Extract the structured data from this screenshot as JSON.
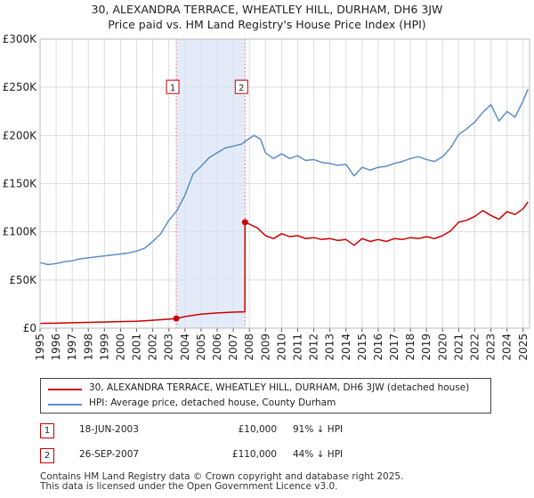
{
  "title_line1": "30, ALEXANDRA TERRACE, WHEATLEY HILL, DURHAM, DH6 3JW",
  "title_line2": "Price paid vs. HM Land Registry's House Price Index (HPI)",
  "chart_data": {
    "type": "line",
    "title": "30, ALEXANDRA TERRACE, WHEATLEY HILL, DURHAM, DH6 3JW — Price paid vs. HM Land Registry's House Price Index (HPI)",
    "xlabel": "",
    "ylabel": "",
    "xlim": [
      1995,
      2025.4
    ],
    "ylim": [
      0,
      300000
    ],
    "y_ticks": [
      {
        "value": 0,
        "label": "£0"
      },
      {
        "value": 50000,
        "label": "£50K"
      },
      {
        "value": 100000,
        "label": "£100K"
      },
      {
        "value": 150000,
        "label": "£150K"
      },
      {
        "value": 200000,
        "label": "£200K"
      },
      {
        "value": 250000,
        "label": "£250K"
      },
      {
        "value": 300000,
        "label": "£300K"
      }
    ],
    "x_ticks": [
      "1995",
      "1996",
      "1997",
      "1998",
      "1999",
      "2000",
      "2001",
      "2002",
      "2003",
      "2004",
      "2005",
      "2006",
      "2007",
      "2008",
      "2009",
      "2010",
      "2011",
      "2012",
      "2013",
      "2014",
      "2015",
      "2016",
      "2017",
      "2018",
      "2019",
      "2020",
      "2021",
      "2022",
      "2023",
      "2024",
      "2025"
    ],
    "shaded_span": [
      2003.46,
      2007.73
    ],
    "series": [
      {
        "name": "30, ALEXANDRA TERRACE, WHEATLEY HILL, DURHAM, DH6 3JW (detached house)",
        "color": "#cc0000",
        "points": [
          [
            1995.0,
            5000
          ],
          [
            1996.0,
            5200
          ],
          [
            1997.0,
            5600
          ],
          [
            1998.0,
            6000
          ],
          [
            1999.0,
            6400
          ],
          [
            2000.0,
            6800
          ],
          [
            2001.0,
            7200
          ],
          [
            2002.0,
            8200
          ],
          [
            2003.0,
            9300
          ],
          [
            2003.46,
            10000
          ],
          [
            2004.0,
            12000
          ],
          [
            2005.0,
            14500
          ],
          [
            2006.0,
            15800
          ],
          [
            2007.0,
            16600
          ],
          [
            2007.72,
            17000
          ],
          [
            2007.73,
            110000
          ],
          [
            2008.0,
            108000
          ],
          [
            2008.5,
            104000
          ],
          [
            2009.0,
            96000
          ],
          [
            2009.5,
            93000
          ],
          [
            2010.0,
            98000
          ],
          [
            2010.5,
            95000
          ],
          [
            2011.0,
            96000
          ],
          [
            2011.5,
            93000
          ],
          [
            2012.0,
            94000
          ],
          [
            2012.5,
            92000
          ],
          [
            2013.0,
            93000
          ],
          [
            2013.5,
            91000
          ],
          [
            2014.0,
            92000
          ],
          [
            2014.5,
            86000
          ],
          [
            2015.0,
            93000
          ],
          [
            2015.5,
            90000
          ],
          [
            2016.0,
            92000
          ],
          [
            2016.5,
            90000
          ],
          [
            2017.0,
            93000
          ],
          [
            2017.5,
            92000
          ],
          [
            2018.0,
            94000
          ],
          [
            2018.5,
            93000
          ],
          [
            2019.0,
            95000
          ],
          [
            2019.5,
            93000
          ],
          [
            2020.0,
            96000
          ],
          [
            2020.5,
            101000
          ],
          [
            2021.0,
            110000
          ],
          [
            2021.5,
            112000
          ],
          [
            2022.0,
            116000
          ],
          [
            2022.5,
            122000
          ],
          [
            2023.0,
            117000
          ],
          [
            2023.5,
            113000
          ],
          [
            2024.0,
            121000
          ],
          [
            2024.5,
            118000
          ],
          [
            2025.0,
            124000
          ],
          [
            2025.3,
            131000
          ]
        ]
      },
      {
        "name": "HPI: Average price, detached house, County Durham",
        "color": "#5b8ec9",
        "points": [
          [
            1995.0,
            68000
          ],
          [
            1995.5,
            66000
          ],
          [
            1996.0,
            67000
          ],
          [
            1996.5,
            69000
          ],
          [
            1997.0,
            70000
          ],
          [
            1997.5,
            72000
          ],
          [
            1998.0,
            73000
          ],
          [
            1998.5,
            74000
          ],
          [
            1999.0,
            75000
          ],
          [
            1999.5,
            76000
          ],
          [
            2000.0,
            77000
          ],
          [
            2000.5,
            78000
          ],
          [
            2001.0,
            80000
          ],
          [
            2001.5,
            83000
          ],
          [
            2002.0,
            90000
          ],
          [
            2002.5,
            98000
          ],
          [
            2003.0,
            112000
          ],
          [
            2003.5,
            122000
          ],
          [
            2004.0,
            138000
          ],
          [
            2004.5,
            160000
          ],
          [
            2005.0,
            168000
          ],
          [
            2005.5,
            177000
          ],
          [
            2006.0,
            182000
          ],
          [
            2006.5,
            187000
          ],
          [
            2007.0,
            189000
          ],
          [
            2007.5,
            191000
          ],
          [
            2008.0,
            197000
          ],
          [
            2008.3,
            200000
          ],
          [
            2008.7,
            196000
          ],
          [
            2009.0,
            182000
          ],
          [
            2009.5,
            176000
          ],
          [
            2010.0,
            181000
          ],
          [
            2010.5,
            176000
          ],
          [
            2011.0,
            179000
          ],
          [
            2011.5,
            174000
          ],
          [
            2012.0,
            175000
          ],
          [
            2012.5,
            172000
          ],
          [
            2013.0,
            171000
          ],
          [
            2013.5,
            169000
          ],
          [
            2014.0,
            170000
          ],
          [
            2014.5,
            158000
          ],
          [
            2015.0,
            167000
          ],
          [
            2015.5,
            164000
          ],
          [
            2016.0,
            167000
          ],
          [
            2016.5,
            168000
          ],
          [
            2017.0,
            171000
          ],
          [
            2017.5,
            173000
          ],
          [
            2018.0,
            176000
          ],
          [
            2018.5,
            178000
          ],
          [
            2019.0,
            175000
          ],
          [
            2019.5,
            173000
          ],
          [
            2020.0,
            178000
          ],
          [
            2020.5,
            187000
          ],
          [
            2021.0,
            201000
          ],
          [
            2021.5,
            207000
          ],
          [
            2022.0,
            214000
          ],
          [
            2022.5,
            224000
          ],
          [
            2023.0,
            232000
          ],
          [
            2023.5,
            215000
          ],
          [
            2024.0,
            225000
          ],
          [
            2024.5,
            219000
          ],
          [
            2025.0,
            236000
          ],
          [
            2025.3,
            248000
          ]
        ]
      }
    ],
    "annotations": [
      {
        "label": "1",
        "x": 2003.46,
        "price": 10000,
        "box_value": 250000
      },
      {
        "label": "2",
        "x": 2007.73,
        "price": 110000,
        "box_value": 250000
      }
    ]
  },
  "legend": {
    "items": [
      {
        "label": "30, ALEXANDRA TERRACE, WHEATLEY HILL, DURHAM, DH6 3JW (detached house)",
        "color": "#cc0000"
      },
      {
        "label": "HPI: Average price, detached house, County Durham",
        "color": "#5b8ec9"
      }
    ]
  },
  "transactions": [
    {
      "num": "1",
      "date": "18-JUN-2003",
      "price": "£10,000",
      "hpi": "91% ↓ HPI"
    },
    {
      "num": "2",
      "date": "26-SEP-2007",
      "price": "£110,000",
      "hpi": "44% ↓ HPI"
    }
  ],
  "footer": {
    "line1": "Contains HM Land Registry data © Crown copyright and database right 2025.",
    "line2": "This data is licensed under the Open Government Licence v3.0."
  }
}
